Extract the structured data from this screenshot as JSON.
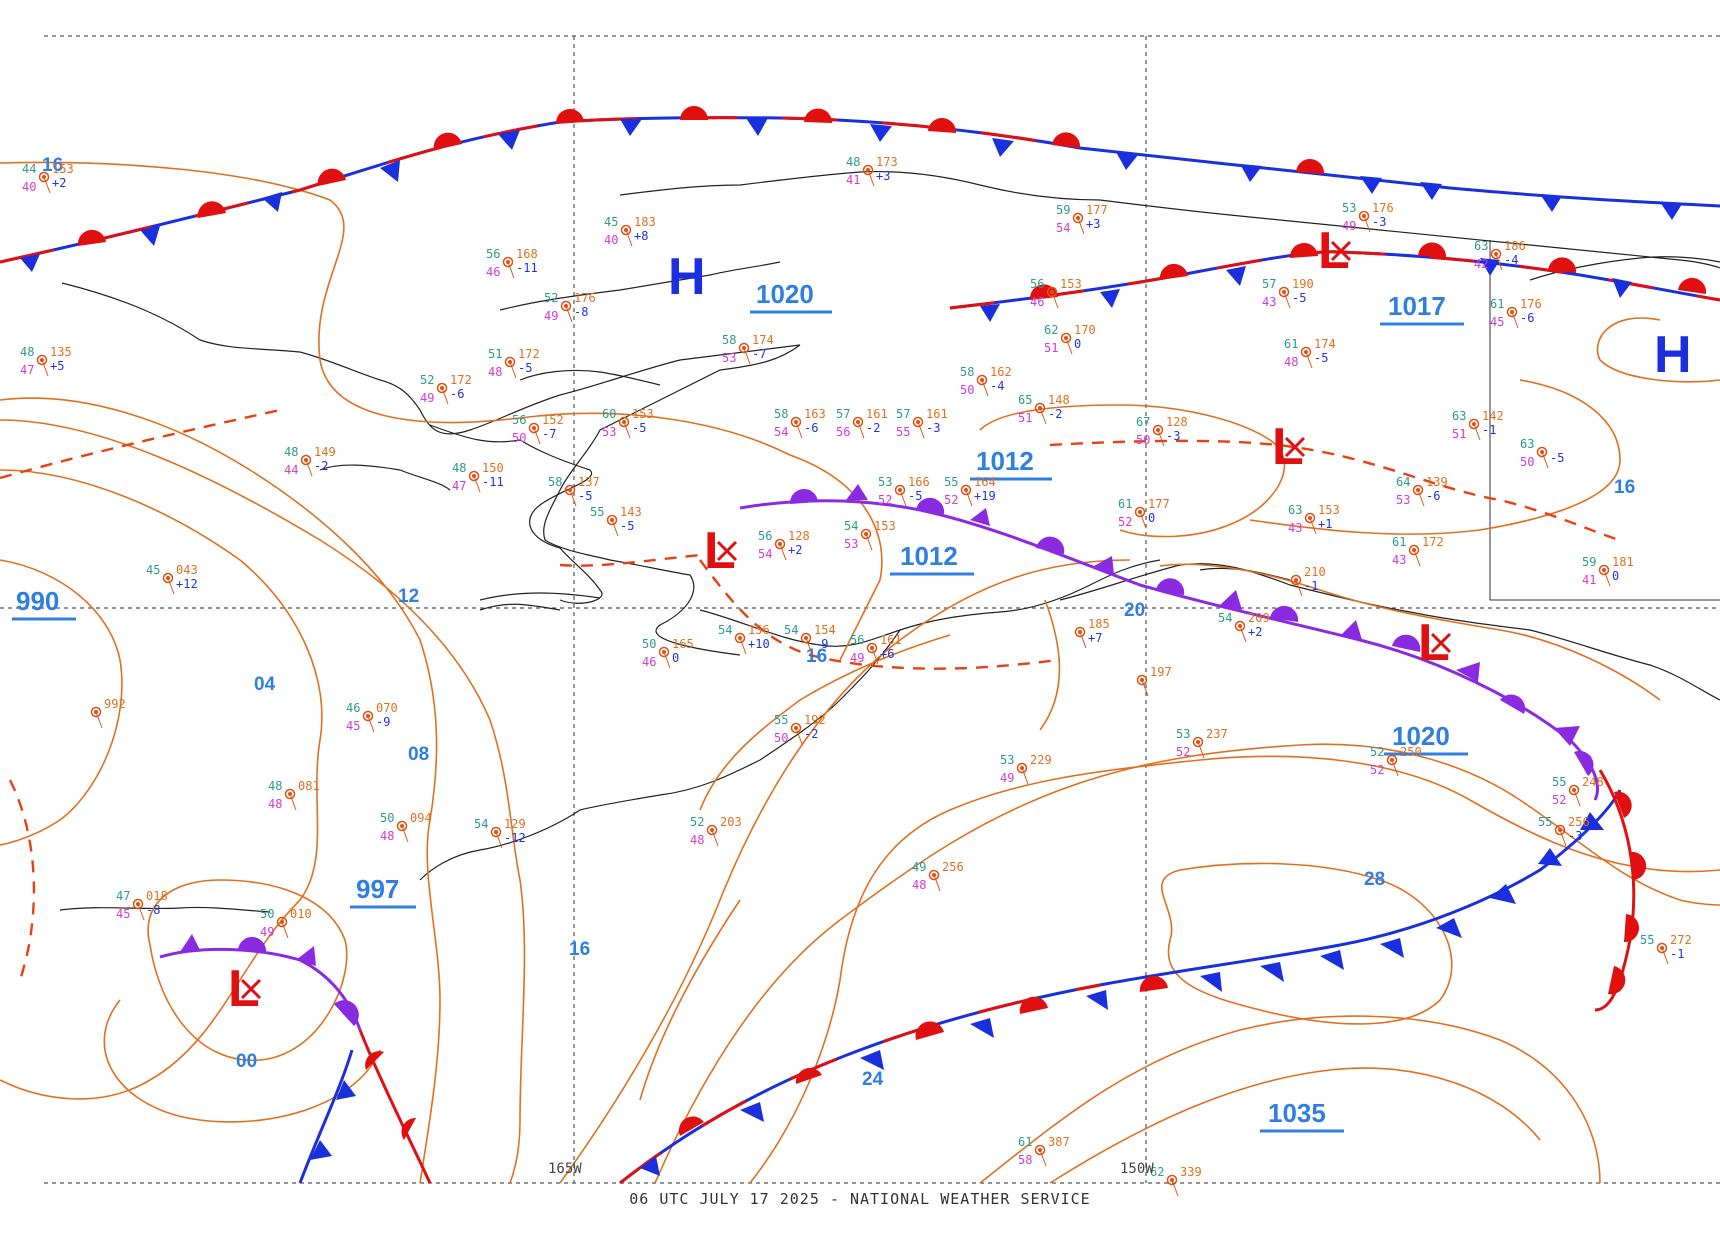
{
  "footer_caption": "06 UTC JULY 17 2025 - NATIONAL WEATHER SERVICE",
  "longitude_labels": [
    {
      "id": "lon-165w",
      "text": "165W"
    },
    {
      "id": "lon-150w",
      "text": "150W"
    }
  ],
  "isobar_labels": [
    "16",
    "12",
    "04",
    "08",
    "16",
    "00",
    "16",
    "20",
    "24",
    "28",
    "16"
  ],
  "pressure_values": [
    "990",
    "997",
    "1020",
    "1012",
    "1012",
    "1017",
    "1020",
    "1035"
  ],
  "pressure_centers": [
    {
      "type": "H",
      "color": "#1a2fdd"
    },
    {
      "type": "H",
      "color": "#1a2fdd"
    },
    {
      "type": "L",
      "color": "#e01010"
    },
    {
      "type": "L",
      "color": "#e01010"
    },
    {
      "type": "L",
      "color": "#e01010"
    },
    {
      "type": "L",
      "color": "#e01010"
    },
    {
      "type": "L",
      "color": "#e01010"
    }
  ],
  "stations": [
    {
      "t": "44",
      "d": "40",
      "p": "153",
      "c": "+2"
    },
    {
      "t": "48",
      "d": "47",
      "p": "135",
      "c": "+5"
    },
    {
      "t": "45",
      "d": "40",
      "p": "183",
      "c": "+8"
    },
    {
      "t": "56",
      "d": "46",
      "p": "168",
      "c": "-11"
    },
    {
      "t": "52",
      "d": "49",
      "p": "176",
      "c": "-8"
    },
    {
      "t": "48",
      "d": "41",
      "p": "173",
      "c": "+3"
    },
    {
      "t": "58",
      "d": "53",
      "p": "174",
      "c": "-7"
    },
    {
      "t": "51",
      "d": "48",
      "p": "172",
      "c": "-5"
    },
    {
      "t": "52",
      "d": "49",
      "p": "172",
      "c": "-6"
    },
    {
      "t": "56",
      "d": "50",
      "p": "152",
      "c": "-7"
    },
    {
      "t": "60",
      "d": "53",
      "p": "153",
      "c": "-5"
    },
    {
      "t": "48",
      "d": "44",
      "p": "149",
      "c": "-2"
    },
    {
      "t": "48",
      "d": "47",
      "p": "150",
      "c": "-11"
    },
    {
      "t": "58",
      "d": "54",
      "p": "163",
      "c": "-6"
    },
    {
      "t": "57",
      "d": "56",
      "p": "161",
      "c": "-2"
    },
    {
      "t": "57",
      "d": "55",
      "p": "161",
      "c": "-3"
    },
    {
      "t": "58",
      "d": "50",
      "p": "162",
      "c": "-4"
    },
    {
      "t": "65",
      "d": "51",
      "p": "148",
      "c": "-2"
    },
    {
      "t": "62",
      "d": "51",
      "p": "170",
      "c": "0"
    },
    {
      "t": "59",
      "d": "54",
      "p": "177",
      "c": "+3"
    },
    {
      "t": "56",
      "d": "46",
      "p": "153",
      "c": ""
    },
    {
      "t": "53",
      "d": "49",
      "p": "176",
      "c": "-3"
    },
    {
      "t": "57",
      "d": "43",
      "p": "190",
      "c": "-5"
    },
    {
      "t": "61",
      "d": "48",
      "p": "174",
      "c": "-5"
    },
    {
      "t": "63",
      "d": "42",
      "p": "186",
      "c": "-4"
    },
    {
      "t": "61",
      "d": "45",
      "p": "176",
      "c": "-6"
    },
    {
      "t": "67",
      "d": "50",
      "p": "128",
      "c": "-3"
    },
    {
      "t": "63",
      "d": "51",
      "p": "142",
      "c": "-1"
    },
    {
      "t": "63",
      "d": "50",
      "p": "",
      "c": "-5"
    },
    {
      "t": "64",
      "d": "53",
      "p": "139",
      "c": "-6"
    },
    {
      "t": "63",
      "d": "43",
      "p": "153",
      "c": "+1"
    },
    {
      "t": "61",
      "d": "43",
      "p": "172",
      "c": ""
    },
    {
      "t": "59",
      "d": "41",
      "p": "181",
      "c": "0"
    },
    {
      "t": "53",
      "d": "52",
      "p": "166",
      "c": "-5"
    },
    {
      "t": "55",
      "d": "52",
      "p": "164",
      "c": "+19"
    },
    {
      "t": "61",
      "d": "52",
      "p": "177",
      "c": "0"
    },
    {
      "t": "56",
      "d": "54",
      "p": "128",
      "c": "+2"
    },
    {
      "t": "54",
      "d": "53",
      "p": "153",
      "c": ""
    },
    {
      "t": "55",
      "d": "",
      "p": "143",
      "c": "-5"
    },
    {
      "t": "58",
      "d": "",
      "p": "137",
      "c": "-5"
    },
    {
      "t": "45",
      "d": "",
      "p": "043",
      "c": "+12"
    },
    {
      "t": "54",
      "d": "",
      "p": "156",
      "c": "+10"
    },
    {
      "t": "50",
      "d": "46",
      "p": "165",
      "c": "0"
    },
    {
      "t": "54",
      "d": "",
      "p": "154",
      "c": "-9"
    },
    {
      "t": "56",
      "d": "49",
      "p": "161",
      "c": "+6"
    },
    {
      "t": "55",
      "d": "50",
      "p": "192",
      "c": "-2"
    },
    {
      "t": "46",
      "d": "45",
      "p": "070",
      "c": "-9"
    },
    {
      "t": "48",
      "d": "48",
      "p": "081",
      "c": ""
    },
    {
      "t": "50",
      "d": "48",
      "p": "094",
      "c": ""
    },
    {
      "t": "54",
      "d": "",
      "p": "129",
      "c": "-12"
    },
    {
      "t": "47",
      "d": "45",
      "p": "018",
      "c": "-8"
    },
    {
      "t": "50",
      "d": "49",
      "p": "010",
      "c": ""
    },
    {
      "t": "52",
      "d": "48",
      "p": "203",
      "c": ""
    },
    {
      "t": "53",
      "d": "52",
      "p": "237",
      "c": ""
    },
    {
      "t": "53",
      "d": "49",
      "p": "229",
      "c": ""
    },
    {
      "t": "49",
      "d": "48",
      "p": "256",
      "c": ""
    },
    {
      "t": "52",
      "d": "52",
      "p": "250",
      "c": ""
    },
    {
      "t": "55",
      "d": "52",
      "p": "248",
      "c": ""
    },
    {
      "t": "55",
      "d": "",
      "p": "256",
      "c": "-3"
    },
    {
      "t": "55",
      "d": "",
      "p": "272",
      "c": "-1"
    },
    {
      "t": "61",
      "d": "58",
      "p": "387",
      "c": ""
    },
    {
      "t": "62",
      "d": "",
      "p": "339",
      "c": ""
    },
    {
      "t": "",
      "d": "",
      "p": "992",
      "c": ""
    },
    {
      "t": "",
      "d": "",
      "p": "197",
      "c": ""
    },
    {
      "t": "54",
      "d": "",
      "p": "209",
      "c": "+2"
    },
    {
      "t": "",
      "d": "",
      "p": "210",
      "c": "-1"
    },
    {
      "t": "",
      "d": "",
      "p": "185",
      "c": "+7"
    }
  ],
  "colors": {
    "isobar": "#e07020",
    "cold_front": "#1a2fdd",
    "warm_front": "#e01010",
    "occluded_front": "#8a2be2",
    "trough": "#e84010",
    "coastline": "#222222",
    "grid": "#555555"
  }
}
